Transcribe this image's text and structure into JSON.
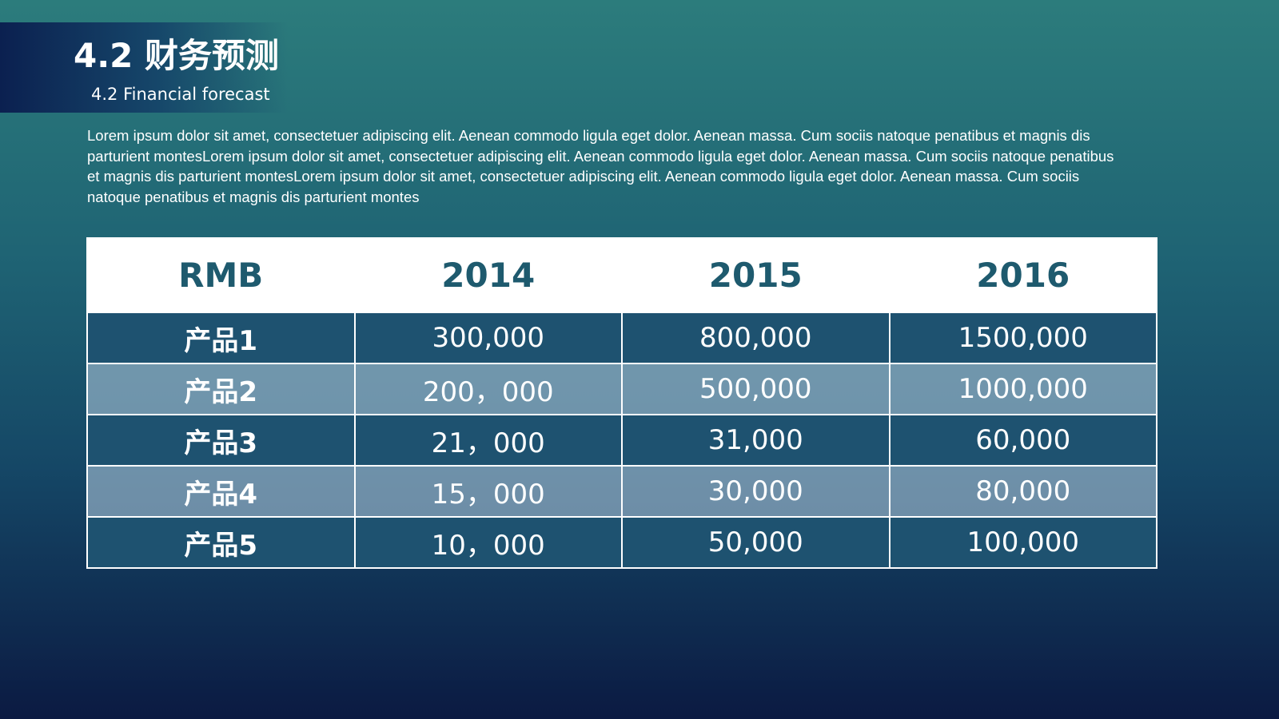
{
  "header": {
    "title": "4.2 财务预测",
    "subtitle": "4.2 Financial forecast"
  },
  "body": {
    "paragraph": "Lorem ipsum dolor sit amet, consectetuer adipiscing elit. Aenean commodo ligula eget dolor. Aenean massa. Cum sociis natoque penatibus et magnis dis parturient montesLorem ipsum dolor sit amet, consectetuer adipiscing elit. Aenean commodo ligula eget dolor. Aenean massa. Cum sociis natoque penatibus et magnis dis parturient montesLorem ipsum dolor sit amet, consectetuer adipiscing elit. Aenean commodo ligula eget dolor. Aenean massa. Cum sociis natoque penatibus et magnis dis parturient montes"
  },
  "table": {
    "columns": [
      "RMB",
      "2014",
      "2015",
      "2016"
    ],
    "rows": [
      [
        "产品1",
        "300,000",
        "800,000",
        "1500,000"
      ],
      [
        "产品2",
        "200，000",
        "500,000",
        "1000,000"
      ],
      [
        "产品3",
        "21，000",
        "31,000",
        "60,000"
      ],
      [
        "产品4",
        "15，000",
        "30,000",
        "80,000"
      ],
      [
        "产品5",
        "10，000",
        "50,000",
        "100,000"
      ]
    ]
  }
}
